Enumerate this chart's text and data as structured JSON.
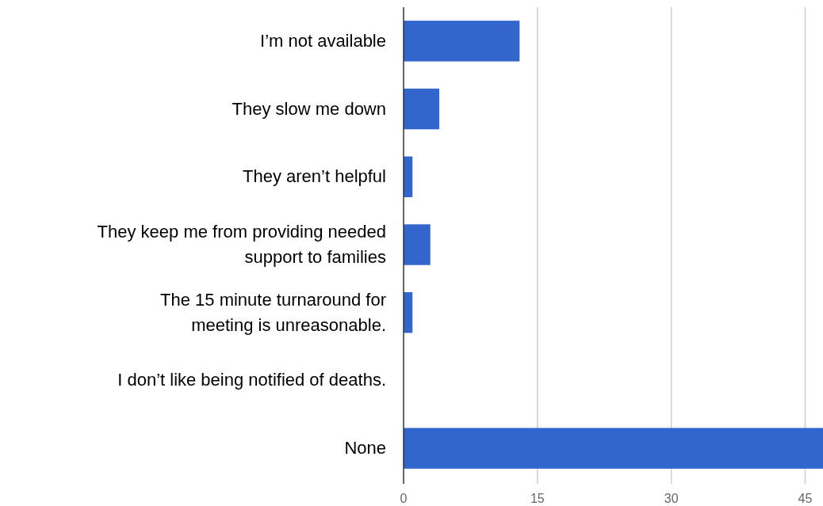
{
  "chart_data": {
    "type": "bar",
    "orientation": "horizontal",
    "categories": [
      "I’m not available",
      "They slow me down",
      "They aren’t helpful",
      "They keep me from providing needed support to families",
      "The 15  minute turnaround for meeting is unreasonable.",
      "I don’t like being notified of deaths.",
      "None"
    ],
    "values": [
      13,
      4,
      1,
      3,
      1,
      0,
      47
    ],
    "color": "#3366cc",
    "xlim": [
      0,
      47
    ],
    "xticks": [
      0,
      15,
      30,
      45
    ],
    "grid": "x"
  }
}
